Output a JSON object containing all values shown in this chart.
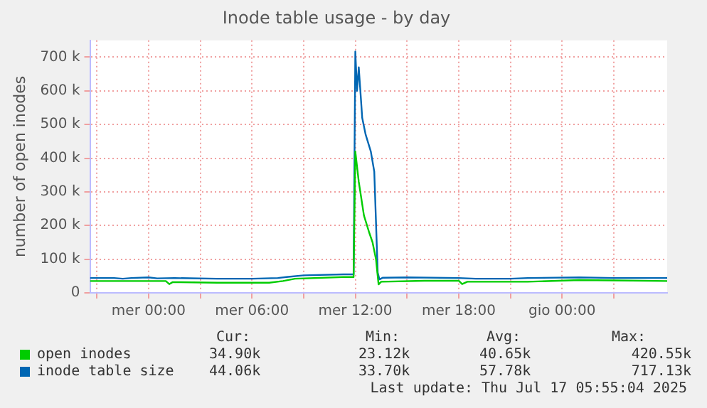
{
  "chart_data": {
    "type": "line",
    "title": "Inode table usage - by day",
    "ylabel": "number of open inodes",
    "xlim": [
      "2025-07-15T20:36",
      "2025-07-17T06:06"
    ],
    "xticks": [
      {
        "value": "2025-07-15T21:00",
        "label": null
      },
      {
        "value": "2025-07-16T00:00",
        "label": "mer 00:00"
      },
      {
        "value": "2025-07-16T03:00",
        "label": null
      },
      {
        "value": "2025-07-16T06:00",
        "label": "mer 06:00"
      },
      {
        "value": "2025-07-16T09:00",
        "label": null
      },
      {
        "value": "2025-07-16T12:00",
        "label": "mer 12:00"
      },
      {
        "value": "2025-07-16T15:00",
        "label": null
      },
      {
        "value": "2025-07-16T18:00",
        "label": "mer 18:00"
      },
      {
        "value": "2025-07-16T21:00",
        "label": null
      },
      {
        "value": "2025-07-17T00:00",
        "label": "gio 00:00"
      },
      {
        "value": "2025-07-17T03:00",
        "label": null
      }
    ],
    "ylim": [
      0,
      750000
    ],
    "yticks": [
      {
        "value": 0,
        "label": "0"
      },
      {
        "value": 100000,
        "label": "100 k"
      },
      {
        "value": 200000,
        "label": "200 k"
      },
      {
        "value": 300000,
        "label": "300 k"
      },
      {
        "value": 400000,
        "label": "400 k"
      },
      {
        "value": 500000,
        "label": "500 k"
      },
      {
        "value": 600000,
        "label": "600 k"
      },
      {
        "value": 700000,
        "label": "700 k"
      }
    ],
    "grid": true,
    "legend": "bottom",
    "marker": "none",
    "line_style": "solid",
    "series": [
      {
        "name": "open inodes",
        "color": "#00cc00",
        "x": [
          "2025-07-15T20:36",
          "2025-07-16T01:00",
          "2025-07-16T01:12",
          "2025-07-16T01:24",
          "2025-07-16T04:00",
          "2025-07-16T07:00",
          "2025-07-16T07:48",
          "2025-07-16T08:30",
          "2025-07-16T11:18",
          "2025-07-16T11:54",
          "2025-07-16T12:00",
          "2025-07-16T12:12",
          "2025-07-16T12:30",
          "2025-07-16T12:48",
          "2025-07-16T13:00",
          "2025-07-16T13:12",
          "2025-07-16T13:21",
          "2025-07-16T13:30",
          "2025-07-16T16:00",
          "2025-07-16T18:00",
          "2025-07-16T18:12",
          "2025-07-16T18:30",
          "2025-07-16T22:00",
          "2025-07-17T01:00",
          "2025-07-17T03:00",
          "2025-07-17T06:06"
        ],
        "values": [
          35000,
          35000,
          26000,
          32000,
          30000,
          30000,
          35000,
          42000,
          47000,
          47000,
          420000,
          330000,
          230000,
          180000,
          150000,
          100000,
          25000,
          33000,
          36000,
          36000,
          26000,
          33000,
          33000,
          38000,
          37000,
          35000
        ]
      },
      {
        "name": "inode table size",
        "color": "#0066b3",
        "x": [
          "2025-07-15T20:36",
          "2025-07-15T22:00",
          "2025-07-15T22:30",
          "2025-07-15T23:00",
          "2025-07-16T00:00",
          "2025-07-16T00:30",
          "2025-07-16T01:30",
          "2025-07-16T04:00",
          "2025-07-16T06:00",
          "2025-07-16T07:30",
          "2025-07-16T08:00",
          "2025-07-16T09:00",
          "2025-07-16T11:18",
          "2025-07-16T11:54",
          "2025-07-16T12:00",
          "2025-07-16T12:06",
          "2025-07-16T12:12",
          "2025-07-16T12:24",
          "2025-07-16T12:36",
          "2025-07-16T12:54",
          "2025-07-16T13:06",
          "2025-07-16T13:18",
          "2025-07-16T13:24",
          "2025-07-16T13:36",
          "2025-07-16T15:00",
          "2025-07-16T18:00",
          "2025-07-16T19:00",
          "2025-07-16T21:00",
          "2025-07-16T22:00",
          "2025-07-17T01:00",
          "2025-07-17T03:00",
          "2025-07-17T06:06"
        ],
        "values": [
          44000,
          44000,
          42000,
          44000,
          46000,
          43000,
          44000,
          42000,
          42000,
          44000,
          47000,
          52000,
          55000,
          55000,
          717000,
          600000,
          670000,
          520000,
          470000,
          420000,
          360000,
          60000,
          40000,
          45000,
          46000,
          44000,
          42000,
          42000,
          44000,
          46000,
          44000,
          44000
        ]
      }
    ],
    "annotations": [
      "Cur:",
      "Min:",
      "Avg:",
      "Max:",
      "34.90k",
      "23.12k",
      "40.65k",
      "420.55k",
      "44.06k",
      "33.70k",
      "57.78k",
      "717.13k",
      "Last update: Thu Jul 17 05:55:04 2025"
    ]
  }
}
